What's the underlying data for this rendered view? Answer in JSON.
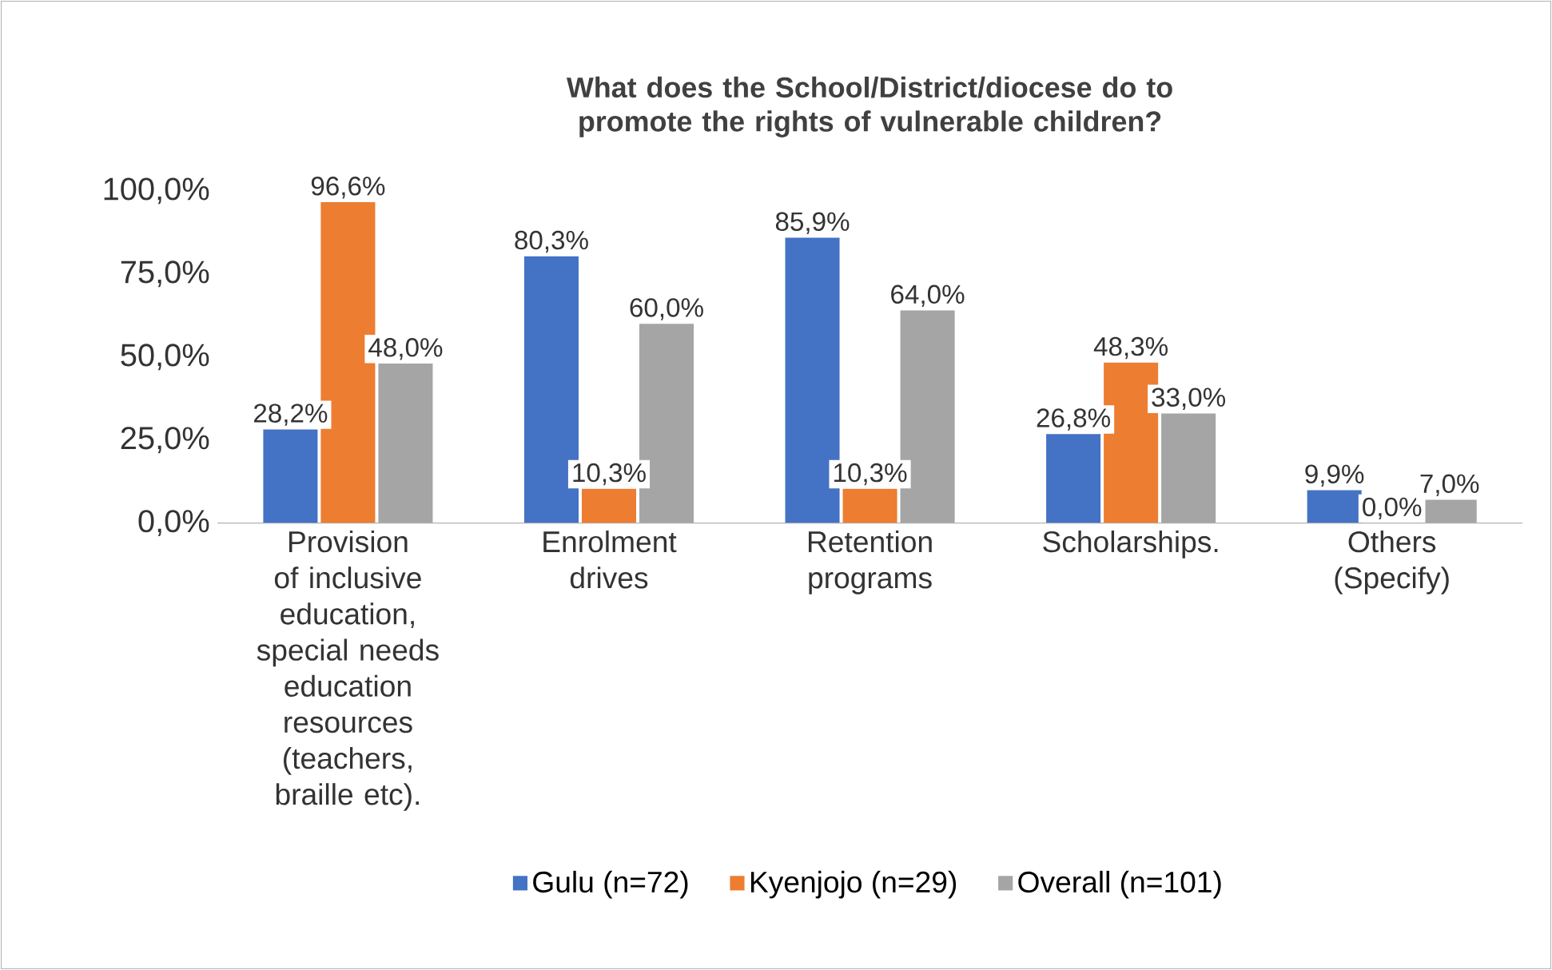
{
  "chart_data": {
    "type": "bar",
    "title": "What does the School/District/diocese do to promote the  rights of vulnerable children?",
    "categories": [
      "Provision of inclusive education, special needs education resources (teachers, braille etc).",
      "Enrolment drives",
      "Retention programs",
      "Scholarships.",
      "Others (Specify)"
    ],
    "series": [
      {
        "name": "Gulu (n=72)",
        "color": "#4472c4",
        "values": [
          28.2,
          80.3,
          85.9,
          26.8,
          9.9
        ],
        "value_labels": [
          "28,2%",
          "80,3%",
          "85,9%",
          "26,8%",
          "9,9%"
        ]
      },
      {
        "name": "Kyenjojo (n=29)",
        "color": "#ed7d31",
        "values": [
          96.6,
          10.3,
          10.3,
          48.3,
          0.0
        ],
        "value_labels": [
          "96,6%",
          "10,3%",
          "10,3%",
          "48,3%",
          "0,0%"
        ]
      },
      {
        "name": "Overall (n=101)",
        "color": "#a5a5a5",
        "values": [
          48.0,
          60.0,
          64.0,
          33.0,
          7.0
        ],
        "value_labels": [
          "48,0%",
          "60,0%",
          "64,0%",
          "33,0%",
          "7,0%"
        ]
      }
    ],
    "ylim": [
      0,
      100
    ],
    "yticks": [
      {
        "value": 0,
        "label": "0,0%"
      },
      {
        "value": 25,
        "label": "25,0%"
      },
      {
        "value": 50,
        "label": "50,0%"
      },
      {
        "value": 75,
        "label": "75,0%"
      },
      {
        "value": 100,
        "label": "100,0%"
      }
    ],
    "legend": "bottom"
  }
}
